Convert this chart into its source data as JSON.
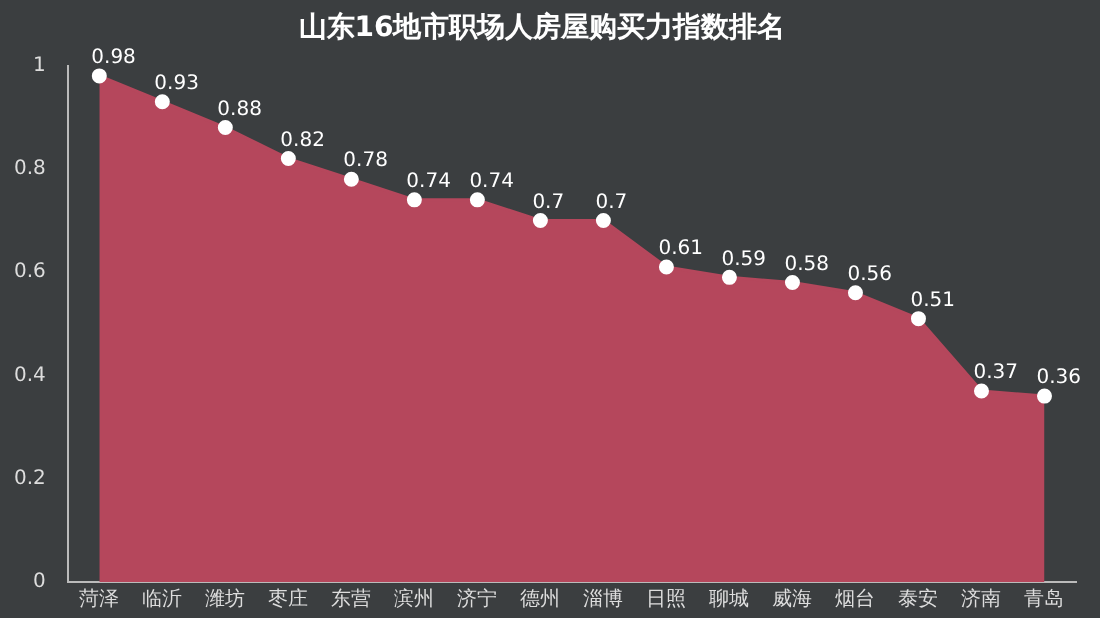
{
  "chart_data": {
    "type": "area",
    "title": "山东16地市职场人房屋购买力指数排名",
    "categories": [
      "菏泽",
      "临沂",
      "潍坊",
      "枣庄",
      "东营",
      "滨州",
      "济宁",
      "德州",
      "淄博",
      "日照",
      "聊城",
      "威海",
      "烟台",
      "泰安",
      "济南",
      "青岛"
    ],
    "series": [
      {
        "color": "#b5475c",
        "values": [
          0.98,
          0.93,
          0.88,
          0.82,
          0.78,
          0.74,
          0.74,
          0.7,
          0.7,
          0.61,
          0.59,
          0.58,
          0.56,
          0.51,
          0.37,
          0.36
        ]
      }
    ],
    "ylim": [
      0,
      1
    ],
    "yticks": [
      0,
      0.2,
      0.4,
      0.6,
      0.8,
      1
    ],
    "grid": false,
    "legend": false,
    "marker": "circle",
    "data_labels": true
  }
}
